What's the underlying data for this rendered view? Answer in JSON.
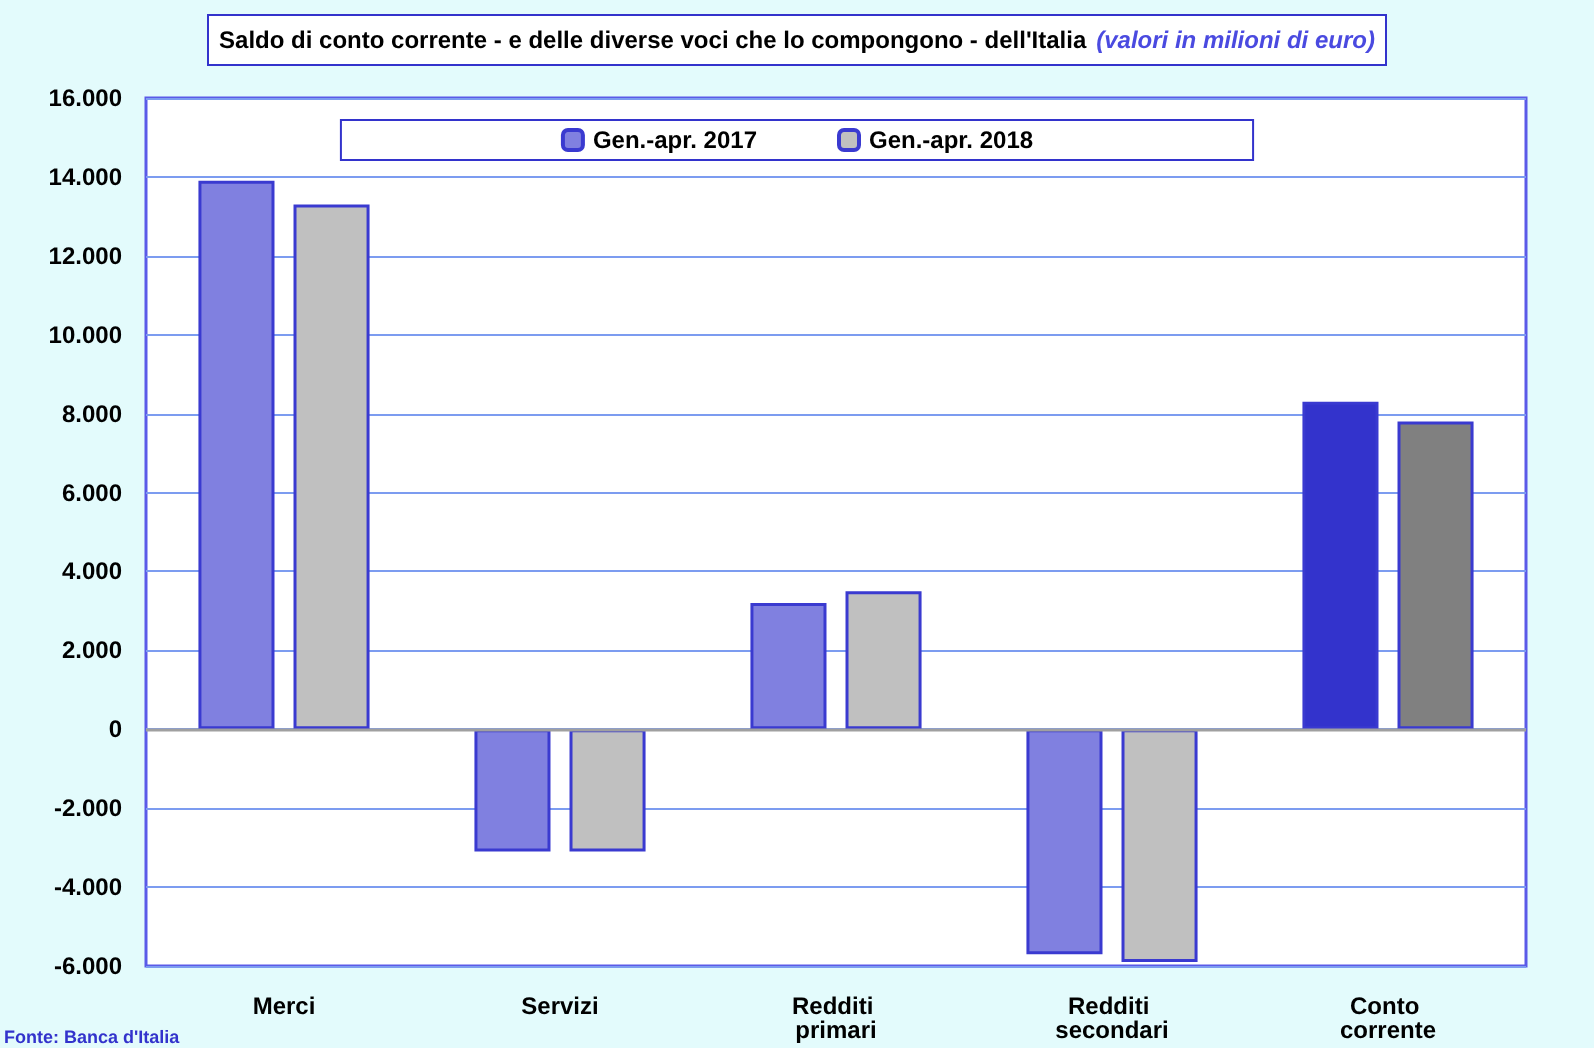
{
  "chart_data": {
    "type": "bar",
    "title": "Saldo di conto corrente - e delle diverse voci che lo compongono - dell'Italia",
    "subtitle": "(valori in milioni di euro)",
    "categories": [
      "Merci",
      "Servizi",
      "Redditi primari",
      "Redditi secondari",
      "Conto corrente"
    ],
    "series": [
      {
        "name": "Gen.-apr. 2017",
        "color": "#8080e0",
        "colors": [
          "#8080e0",
          "#8080e0",
          "#8080e0",
          "#8080e0",
          "#3333cc"
        ],
        "values": [
          13900,
          -3100,
          3200,
          -5700,
          8300
        ]
      },
      {
        "name": "Gen.-apr. 2018",
        "color": "#c0c0c0",
        "colors": [
          "#c0c0c0",
          "#c0c0c0",
          "#c0c0c0",
          "#c0c0c0",
          "#808080"
        ],
        "values": [
          13300,
          -3100,
          3500,
          -5900,
          7800
        ]
      }
    ],
    "ylim": [
      -6000,
      16000
    ],
    "yticks": [
      {
        "value": -6000,
        "label": "-6.000"
      },
      {
        "value": -4000,
        "label": "-4.000"
      },
      {
        "value": -2000,
        "label": "-2.000"
      },
      {
        "value": 0,
        "label": "0"
      },
      {
        "value": 2000,
        "label": "2.000"
      },
      {
        "value": 4000,
        "label": "4.000"
      },
      {
        "value": 6000,
        "label": "6.000"
      },
      {
        "value": 8000,
        "label": "8.000"
      },
      {
        "value": 10000,
        "label": "10.000"
      },
      {
        "value": 12000,
        "label": "12.000"
      },
      {
        "value": 14000,
        "label": "14.000"
      },
      {
        "value": 16000,
        "label": "16.000"
      }
    ],
    "grid": "y",
    "legend": "top",
    "annotations": [
      "Fonte: Banca d'Italia"
    ]
  }
}
